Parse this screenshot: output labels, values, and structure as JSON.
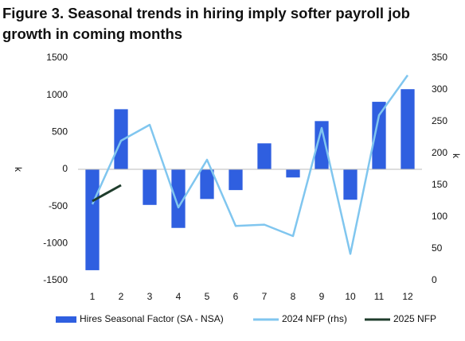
{
  "chart_data": {
    "type": "bar_line",
    "title": [
      "Figure 3. Seasonal trends in hiring imply softer payroll job",
      "growth in coming months"
    ],
    "ylabel": "k",
    "y2label": "k",
    "categories": [
      "1",
      "2",
      "3",
      "4",
      "5",
      "6",
      "7",
      "8",
      "9",
      "10",
      "11",
      "12"
    ],
    "series": [
      {
        "name": "Hires Seasonal Factor (SA - NSA)",
        "type": "bar",
        "color": "#2f5fe0",
        "axis": "y",
        "values": [
          -1360,
          810,
          -480,
          -790,
          -400,
          -280,
          350,
          -110,
          650,
          -410,
          910,
          1080
        ]
      },
      {
        "name": "2024 NFP (rhs)",
        "type": "line",
        "color": "#80c6ef",
        "axis": "y2",
        "values": [
          120,
          220,
          245,
          115,
          190,
          86,
          88,
          70,
          240,
          42,
          260,
          323
        ]
      },
      {
        "name": "2025 NFP",
        "type": "line",
        "color": "#1f3d2c",
        "axis": "y2",
        "values": [
          125,
          150,
          null,
          null,
          null,
          null,
          null,
          null,
          null,
          null,
          null,
          null
        ]
      }
    ],
    "ylim": [
      -1500,
      1500
    ],
    "yticks": [
      -1500,
      -1000,
      -500,
      0,
      500,
      1000,
      1500
    ],
    "y2lim": [
      0,
      350
    ],
    "y2ticks": [
      0,
      50,
      100,
      150,
      200,
      250,
      300,
      350
    ],
    "legend": "bottom"
  }
}
